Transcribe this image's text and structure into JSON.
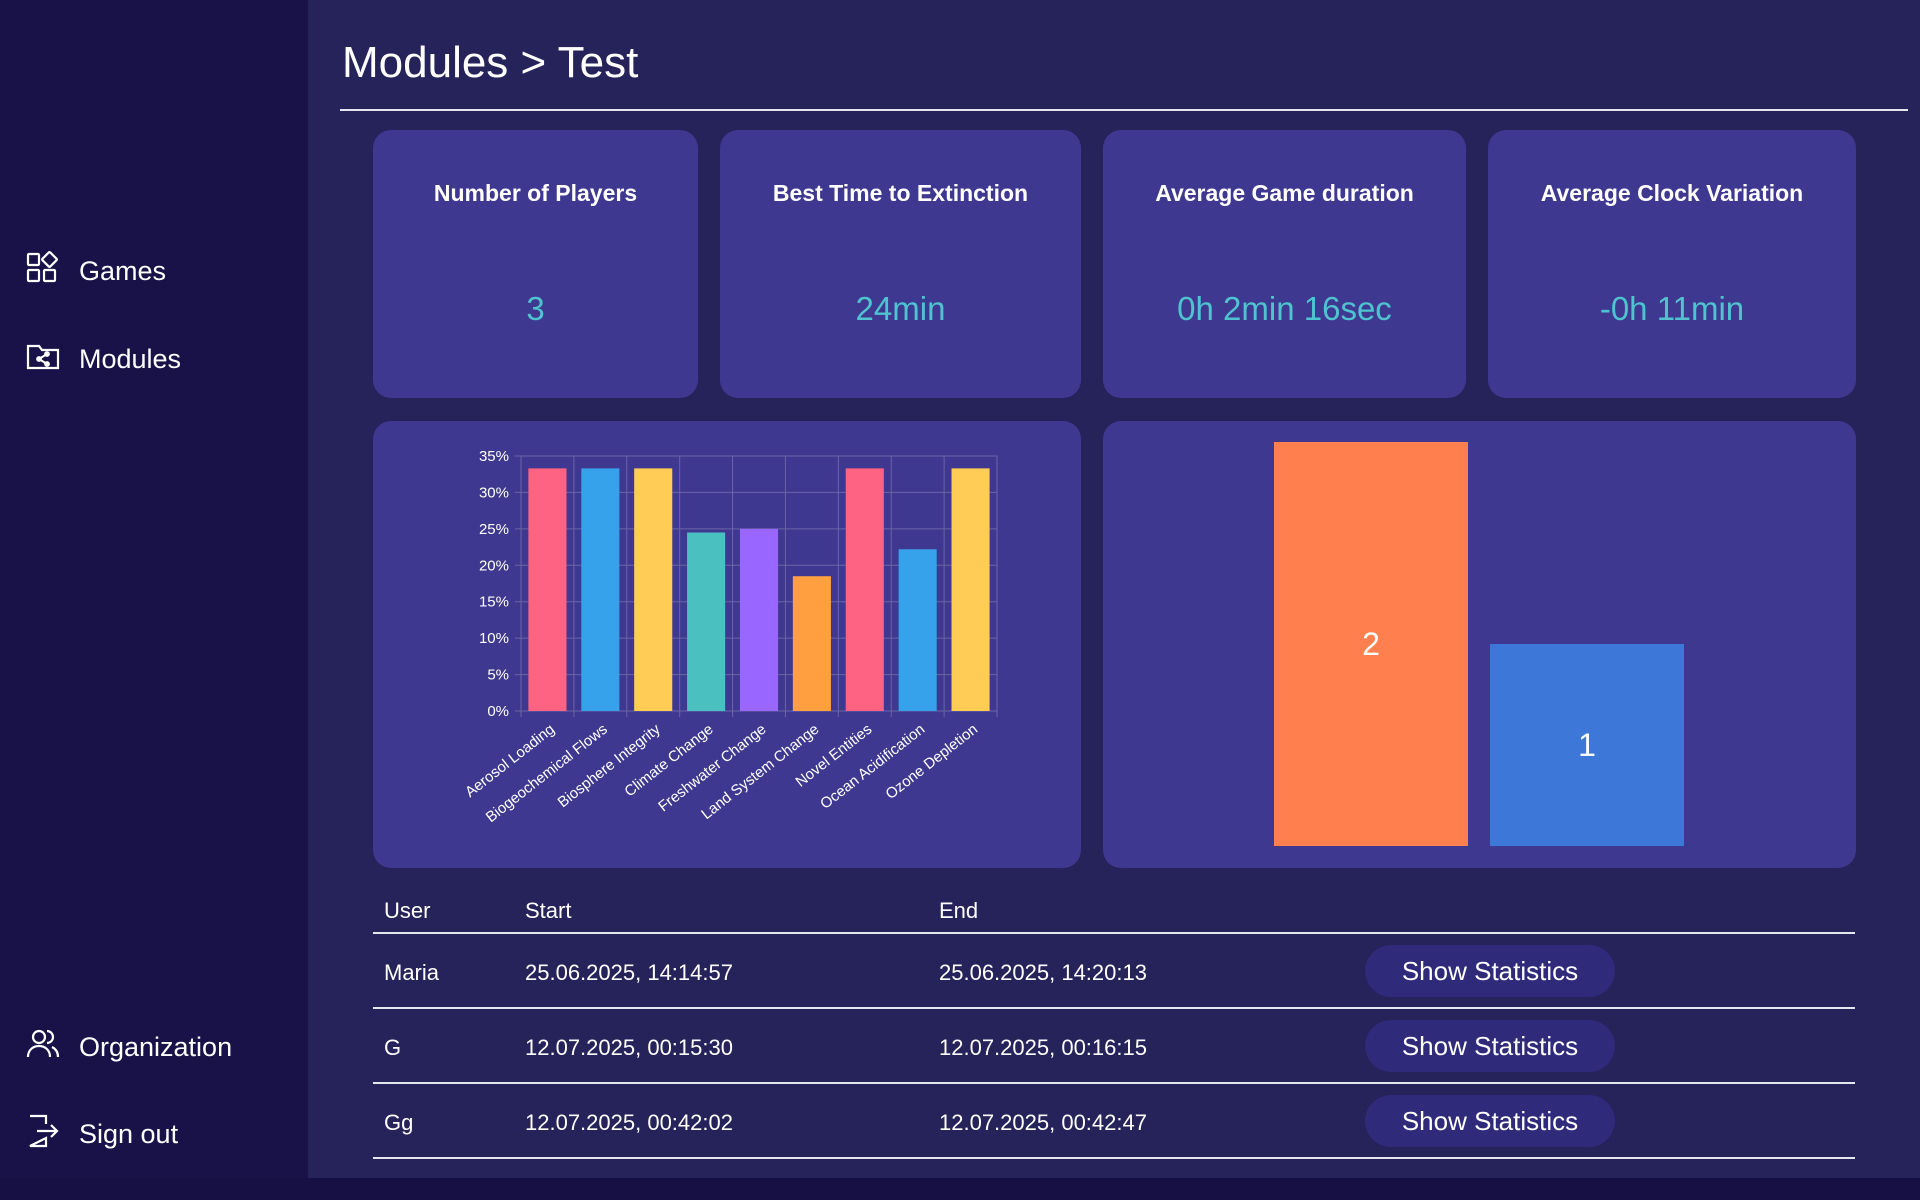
{
  "sidebar": {
    "items": [
      {
        "label": "Games",
        "icon": "games-grid-icon"
      },
      {
        "label": "Modules",
        "icon": "folder-share-icon"
      },
      {
        "label": "Organization",
        "icon": "users-icon"
      },
      {
        "label": "Sign out",
        "icon": "sign-out-icon"
      }
    ]
  },
  "page": {
    "title": "Modules > Test"
  },
  "stats": [
    {
      "label": "Number of Players",
      "value": "3"
    },
    {
      "label": "Best Time to Extinction",
      "value": "24min"
    },
    {
      "label": "Average Game duration",
      "value": "0h 2min 16sec"
    },
    {
      "label": "Average Clock Variation",
      "value": "-0h 11min"
    }
  ],
  "chart_data": [
    {
      "type": "bar",
      "categories": [
        "Aerosol Loading",
        "Biogeochemical Flows",
        "Biosphere Integrity",
        "Climate Change",
        "Freshwater Change",
        "Land System Change",
        "Novel Entities",
        "Ocean Acidification",
        "Ozone Depletion"
      ],
      "values": [
        33.3,
        33.3,
        33.3,
        24.5,
        25,
        18.5,
        33.3,
        22.2,
        33.3
      ],
      "colors": [
        "#ff6384",
        "#36a2eb",
        "#ffcd56",
        "#4bc0c0",
        "#9966ff",
        "#ff9f40",
        "#ff6384",
        "#36a2eb",
        "#ffcd56"
      ],
      "yticks": [
        "0%",
        "5%",
        "10%",
        "15%",
        "20%",
        "25%",
        "30%",
        "35%"
      ],
      "ylim": [
        0,
        35
      ],
      "grid": true
    },
    {
      "type": "bar",
      "values": [
        2,
        1
      ],
      "labels": [
        "2",
        "1"
      ],
      "colors": [
        "#ff7f4f",
        "#3d78d8"
      ],
      "ylim": [
        0,
        2
      ]
    }
  ],
  "table": {
    "headers": [
      "User",
      "Start",
      "End"
    ],
    "button_label": "Show Statistics",
    "rows": [
      {
        "user": "Maria",
        "start": "25.06.2025, 14:14:57",
        "end": "25.06.2025, 14:20:13"
      },
      {
        "user": "G",
        "start": "12.07.2025, 00:15:30",
        "end": "12.07.2025, 00:16:15"
      },
      {
        "user": "Gg",
        "start": "12.07.2025, 00:42:02",
        "end": "12.07.2025, 00:42:47"
      }
    ]
  }
}
